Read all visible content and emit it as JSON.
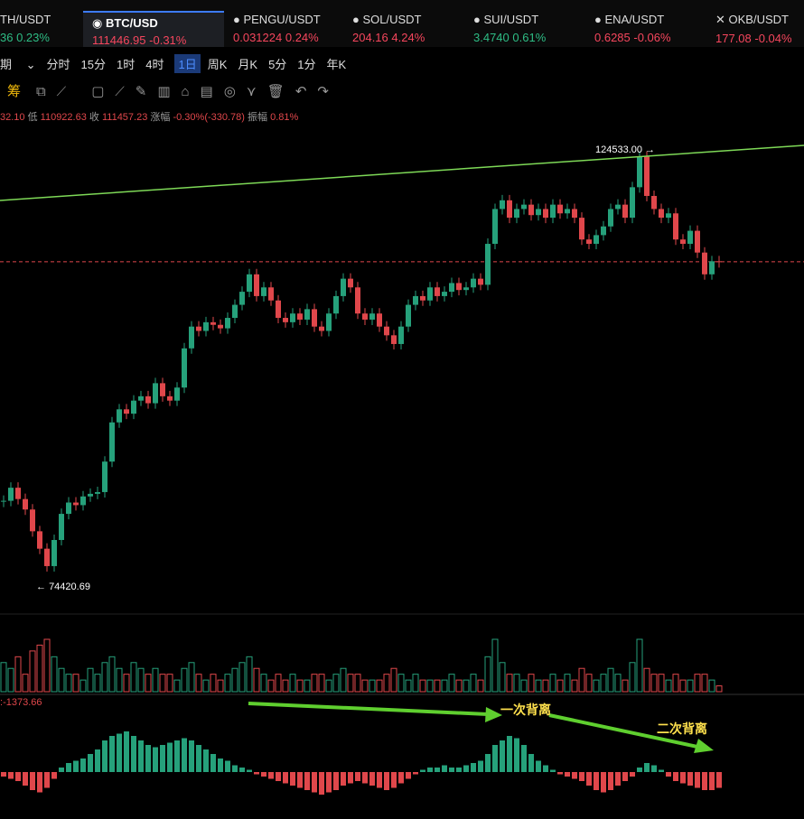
{
  "tickers": [
    {
      "symbol": "TH/USDT",
      "price": "36",
      "change": "0.23%"
    },
    {
      "symbol": "BTC/USD",
      "price": "111446.95",
      "change": "-0.31%"
    },
    {
      "symbol": "PENGU/USDT",
      "price": "0.031224",
      "change": "0.24%"
    },
    {
      "symbol": "SOL/USDT",
      "price": "204.16",
      "change": "4.24%"
    },
    {
      "symbol": "SUI/USDT",
      "price": "3.4740",
      "change": "0.61%"
    },
    {
      "symbol": "ENA/USDT",
      "price": "0.6285",
      "change": "-0.06%"
    },
    {
      "symbol": "OKB/USDT",
      "price": "177.08",
      "change": "-0.04%"
    }
  ],
  "periods": {
    "current": "期",
    "items": [
      "分时",
      "15分",
      "1时",
      "4时",
      "1日",
      "周K",
      "月K",
      "5分",
      "1分",
      "年K"
    ],
    "active": "1日"
  },
  "toolbar": {
    "chip": "筹"
  },
  "info": {
    "open_tail": "32.10",
    "low_label": "低",
    "low": "110922.63",
    "close_label": "收",
    "close": "111457.23",
    "change_label": "涨幅",
    "change": "-0.30%(-330.78)",
    "amp_label": "振幅",
    "amp": "0.81%"
  },
  "price_chart": {
    "high_label": "124533.00",
    "low_label": "74420.69",
    "ylim": [
      71000,
      127500
    ],
    "closes": [
      84000,
      85500,
      84200,
      83000,
      80500,
      78500,
      76500,
      79500,
      82500,
      83800,
      83500,
      84500,
      84800,
      85000,
      88500,
      93000,
      94500,
      94000,
      95500,
      96000,
      95200,
      97500,
      96000,
      95500,
      97000,
      101500,
      104000,
      103500,
      104500,
      104200,
      103800,
      105000,
      106500,
      108000,
      110000,
      107500,
      108500,
      107000,
      105000,
      104500,
      105500,
      104800,
      106000,
      104000,
      103500,
      105500,
      107500,
      109500,
      108500,
      105500,
      104800,
      105500,
      104000,
      103000,
      102000,
      104000,
      106500,
      107500,
      107000,
      108500,
      107500,
      108000,
      109000,
      108200,
      108500,
      109500,
      108800,
      113500,
      117500,
      118500,
      116500,
      117500,
      118000,
      116800,
      117500,
      116500,
      118000,
      117000,
      117500,
      116500,
      114000,
      113500,
      114500,
      115500,
      117500,
      118000,
      116500,
      120000,
      123500,
      119000,
      117500,
      116500,
      117000,
      114000,
      113500,
      115000,
      112500,
      110000,
      111500,
      111447
    ],
    "volume": [
      5,
      4,
      6,
      3,
      7,
      8,
      9,
      6,
      4,
      3,
      3,
      2,
      4,
      3,
      5,
      6,
      4,
      3,
      5,
      4,
      3,
      4,
      3,
      3,
      2,
      4,
      5,
      3,
      2,
      3,
      2,
      3,
      4,
      5,
      6,
      4,
      3,
      2,
      3,
      2,
      3,
      2,
      2,
      3,
      3,
      2,
      3,
      4,
      3,
      3,
      2,
      2,
      2,
      3,
      4,
      3,
      2,
      3,
      2,
      2,
      2,
      2,
      3,
      2,
      2,
      3,
      2,
      6,
      9,
      5,
      3,
      3,
      2,
      3,
      2,
      2,
      3,
      2,
      3,
      2,
      4,
      3,
      2,
      3,
      4,
      3,
      2,
      5,
      9,
      4,
      3,
      3,
      2,
      3,
      2,
      2,
      3,
      3,
      2,
      1
    ]
  },
  "macd": {
    "label": "-1373.66",
    "hist": [
      -2,
      -3,
      -4,
      -6,
      -8,
      -9,
      -7,
      -3,
      2,
      4,
      5,
      6,
      8,
      10,
      14,
      16,
      17,
      18,
      16,
      14,
      12,
      11,
      12,
      13,
      14,
      15,
      14,
      12,
      10,
      8,
      6,
      5,
      3,
      2,
      1,
      -1,
      -2,
      -3,
      -4,
      -5,
      -6,
      -7,
      -8,
      -9,
      -10,
      -9,
      -8,
      -6,
      -5,
      -4,
      -5,
      -6,
      -7,
      -8,
      -7,
      -5,
      -3,
      -1,
      1,
      2,
      2,
      3,
      2,
      2,
      3,
      4,
      5,
      8,
      12,
      14,
      16,
      15,
      12,
      8,
      5,
      3,
      1,
      -1,
      -2,
      -3,
      -4,
      -6,
      -8,
      -9,
      -8,
      -6,
      -4,
      -2,
      2,
      4,
      3,
      1,
      -2,
      -4,
      -5,
      -6,
      -7,
      -8,
      -8,
      -7
    ],
    "annotations": [
      "一次背离",
      "二次背离"
    ]
  }
}
